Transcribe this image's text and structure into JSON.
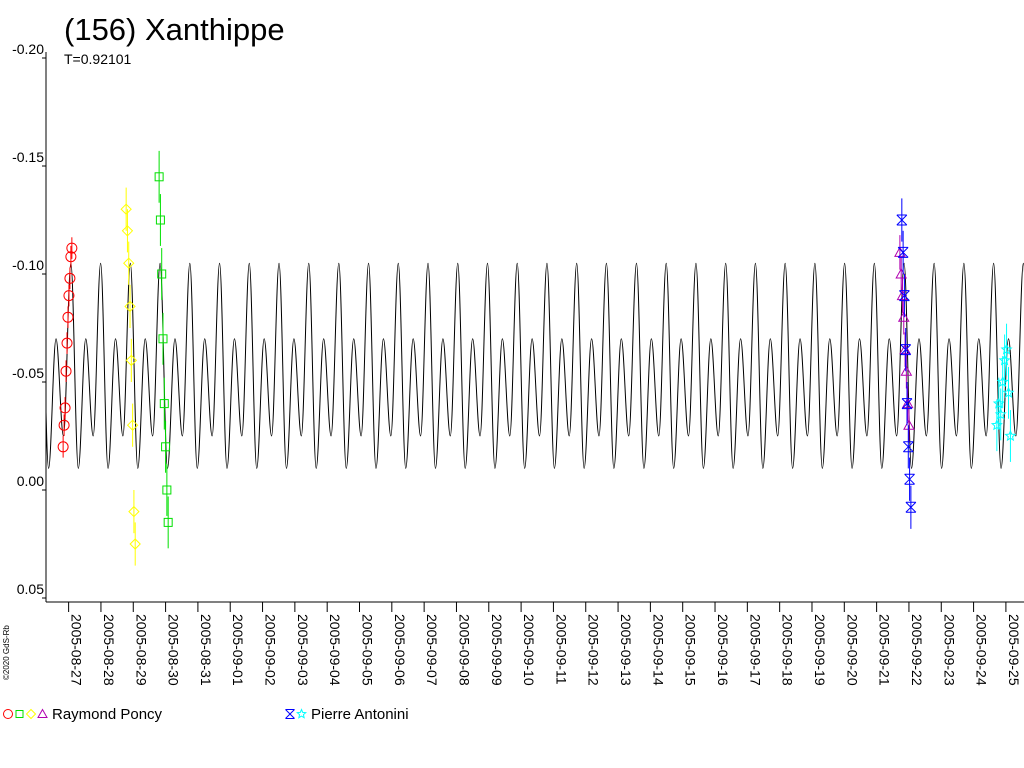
{
  "chart_data": {
    "type": "lightcurve",
    "title": "(156) Xanthippe",
    "subtitle": "T=0.92101",
    "credit": "©2020 GdS-Rb",
    "xlim": [
      238.3,
      268.56
    ],
    "ylim": [
      0.05,
      -0.2
    ],
    "yticks": [
      {
        "value": -0.2,
        "label": "-0.20"
      },
      -0.15,
      {
        "value": -0.1,
        "label": "-0.10"
      },
      -0.05,
      {
        "value": 0,
        "label": "0.00"
      },
      0.05
    ],
    "xticks": [
      {
        "value": 239,
        "label": "2005-08-27"
      },
      {
        "value": 240,
        "label": "2005-08-28"
      },
      {
        "value": 241,
        "label": "2005-08-29"
      },
      {
        "value": 242,
        "label": "2005-08-30"
      },
      {
        "value": 243,
        "label": "2005-08-31"
      },
      {
        "value": 244,
        "label": "2005-09-01"
      },
      {
        "value": 245,
        "label": "2005-09-02"
      },
      {
        "value": 246,
        "label": "2005-09-03"
      },
      {
        "value": 247,
        "label": "2005-09-04"
      },
      {
        "value": 248,
        "label": "2005-09-05"
      },
      {
        "value": 249,
        "label": "2005-09-06"
      },
      {
        "value": 250,
        "label": "2005-09-07"
      },
      {
        "value": 251,
        "label": "2005-09-08"
      },
      {
        "value": 252,
        "label": "2005-09-09"
      },
      {
        "value": 253,
        "label": "2005-09-10"
      },
      {
        "value": 254,
        "label": "2005-09-11"
      },
      {
        "value": 255,
        "label": "2005-09-12"
      },
      {
        "value": 256,
        "label": "2005-09-13"
      },
      {
        "value": 257,
        "label": "2005-09-14"
      },
      {
        "value": 258,
        "label": "2005-09-15"
      },
      {
        "value": 259,
        "label": "2005-09-16"
      },
      {
        "value": 260,
        "label": "2005-09-17"
      },
      {
        "value": 261,
        "label": "2005-09-18"
      },
      {
        "value": 262,
        "label": "2005-09-19"
      },
      {
        "value": 263,
        "label": "2005-09-20"
      },
      {
        "value": 264,
        "label": "2005-09-21"
      },
      {
        "value": 265,
        "label": "2005-09-22"
      },
      {
        "value": 266,
        "label": "2005-09-23"
      },
      {
        "value": 267,
        "label": "2005-09-24"
      },
      {
        "value": 268,
        "label": "2005-09-25"
      }
    ],
    "model": {
      "color": "#000000",
      "x": [
        238.15,
        238.38,
        238.61,
        238.84,
        239.07,
        239.3,
        239.53,
        239.76,
        239.99,
        240.22,
        240.45,
        240.68,
        240.91,
        241.14,
        241.37,
        241.6,
        241.83,
        242.06,
        242.29,
        242.52,
        242.75,
        242.98,
        243.21,
        243.44,
        243.67,
        243.9,
        244.13,
        244.36,
        244.59,
        244.82,
        245.05,
        245.28,
        245.51,
        245.74,
        245.97,
        246.2,
        246.43,
        246.66,
        246.89,
        247.12,
        247.36,
        247.59,
        247.82,
        248.05,
        248.28,
        248.51,
        248.74,
        248.97,
        249.2,
        249.43,
        249.66,
        249.89,
        250.12,
        250.35,
        250.58,
        250.81,
        251.04,
        251.27,
        251.5,
        251.73,
        251.96,
        252.19,
        252.42,
        252.65,
        252.88,
        253.11,
        253.34,
        253.57,
        253.8,
        254.03,
        254.26,
        254.49,
        254.72,
        254.95,
        255.18,
        255.41,
        255.64,
        255.87,
        256.1,
        256.33,
        256.57,
        256.8,
        257.03,
        257.26,
        257.49,
        257.72,
        257.95,
        258.18,
        258.41,
        258.64,
        258.87,
        259.1,
        259.33,
        259.56,
        259.79,
        260.02,
        260.25,
        260.48,
        260.71,
        260.94,
        261.17,
        261.4,
        261.63,
        261.86,
        262.09,
        262.32,
        262.55,
        262.78,
        263.01,
        263.24,
        263.47,
        263.7,
        263.93,
        264.16,
        264.39,
        264.62,
        264.85,
        265.08,
        265.31,
        265.54,
        265.78,
        266.01,
        266.24,
        266.47,
        266.7,
        266.93,
        267.16,
        267.39,
        267.62,
        267.85,
        268.08,
        268.31,
        268.54,
        268.77
      ],
      "values": [
        -0.105,
        -0.01,
        -0.07,
        -0.025,
        -0.105,
        -0.01,
        -0.07,
        -0.025,
        -0.105,
        -0.01,
        -0.07,
        -0.025,
        -0.105,
        -0.01,
        -0.07,
        -0.025,
        -0.105,
        -0.01,
        -0.07,
        -0.025,
        -0.105,
        -0.01,
        -0.07,
        -0.025,
        -0.105,
        -0.01,
        -0.07,
        -0.025,
        -0.105,
        -0.01,
        -0.07,
        -0.025,
        -0.105,
        -0.01,
        -0.07,
        -0.025,
        -0.105,
        -0.01,
        -0.07,
        -0.025,
        -0.105,
        -0.01,
        -0.07,
        -0.025,
        -0.105,
        -0.01,
        -0.07,
        -0.025,
        -0.105,
        -0.01,
        -0.07,
        -0.025,
        -0.105,
        -0.01,
        -0.07,
        -0.025,
        -0.105,
        -0.01,
        -0.07,
        -0.025,
        -0.105,
        -0.01,
        -0.07,
        -0.025,
        -0.105,
        -0.01,
        -0.07,
        -0.025,
        -0.105,
        -0.01,
        -0.07,
        -0.025,
        -0.105,
        -0.01,
        -0.07,
        -0.025,
        -0.105,
        -0.01,
        -0.07,
        -0.025,
        -0.105,
        -0.01,
        -0.07,
        -0.025,
        -0.105,
        -0.01,
        -0.07,
        -0.025,
        -0.105,
        -0.01,
        -0.07,
        -0.025,
        -0.105,
        -0.01,
        -0.07,
        -0.025,
        -0.105,
        -0.01,
        -0.07,
        -0.025,
        -0.105,
        -0.01,
        -0.07,
        -0.025,
        -0.105,
        -0.01,
        -0.07,
        -0.025,
        -0.105,
        -0.01,
        -0.07,
        -0.025,
        -0.105,
        -0.01,
        -0.07,
        -0.025,
        -0.105,
        -0.01,
        -0.07,
        -0.025,
        -0.105,
        -0.01,
        -0.07,
        -0.025,
        -0.105,
        -0.01,
        -0.07,
        -0.025,
        -0.105,
        -0.01,
        -0.07,
        -0.025,
        -0.105,
        -0.01
      ]
    },
    "observers": [
      {
        "name": "Raymond Poncy",
        "series": [
          {
            "color": "#ff0000",
            "marker": "circle",
            "x": [
              238.83,
              238.86,
              238.89,
              238.92,
              238.95,
              238.98,
              239.01,
              239.04,
              239.07,
              239.1
            ],
            "values": [
              -0.02,
              -0.03,
              -0.038,
              -0.055,
              -0.068,
              -0.08,
              -0.09,
              -0.098,
              -0.108,
              -0.112
            ],
            "errors": [
              0.005,
              0.005,
              0.005,
              0.005,
              0.005,
              0.005,
              0.005,
              0.005,
              0.005,
              0.005
            ]
          },
          {
            "color": "#00e000",
            "marker": "square",
            "x": [
              241.8,
              241.84,
              241.88,
              241.92,
              241.96,
              242.0,
              242.04,
              242.08
            ],
            "values": [
              -0.145,
              -0.125,
              -0.1,
              -0.07,
              -0.04,
              -0.02,
              0,
              0.015
            ],
            "errors": [
              0.012,
              0.012,
              0.012,
              0.012,
              0.012,
              0.012,
              0.012,
              0.012
            ]
          },
          {
            "color": "#ffff00",
            "marker": "diamond",
            "x": [
              240.78,
              240.82,
              240.86,
              240.9,
              240.94,
              240.98,
              241.02,
              241.06
            ],
            "values": [
              -0.13,
              -0.12,
              -0.105,
              -0.085,
              -0.06,
              -0.03,
              0.01,
              0.025
            ],
            "errors": [
              0.01,
              0.01,
              0.01,
              0.01,
              0.01,
              0.01,
              0.01,
              0.01
            ]
          },
          {
            "color": "#b000b0",
            "marker": "triangle",
            "x": [
              264.72,
              264.76,
              264.8,
              264.84,
              264.88,
              264.92,
              264.96,
              265.0
            ],
            "values": [
              -0.11,
              -0.1,
              -0.09,
              -0.08,
              -0.065,
              -0.055,
              -0.04,
              -0.03
            ],
            "errors": [
              0.008,
              0.008,
              0.008,
              0.008,
              0.008,
              0.008,
              0.008,
              0.008
            ]
          }
        ]
      },
      {
        "name": "Pierre Antonini",
        "series": [
          {
            "color": "#0000ff",
            "marker": "xstar",
            "x": [
              264.78,
              264.82,
              264.86,
              264.9,
              264.94,
              264.98,
              265.02,
              265.06
            ],
            "values": [
              -0.125,
              -0.11,
              -0.09,
              -0.065,
              -0.04,
              -0.02,
              -0.005,
              0.008
            ],
            "errors": [
              0.01,
              0.01,
              0.01,
              0.01,
              0.01,
              0.01,
              0.01,
              0.01
            ]
          },
          {
            "color": "#00ffff",
            "marker": "star",
            "x": [
              267.72,
              267.78,
              267.84,
              267.9,
              267.96,
              268.02,
              268.08,
              268.14
            ],
            "values": [
              -0.03,
              -0.04,
              -0.035,
              -0.05,
              -0.06,
              -0.065,
              -0.045,
              -0.025
            ],
            "errors": [
              0.012,
              0.012,
              0.012,
              0.012,
              0.012,
              0.012,
              0.012,
              0.012
            ]
          }
        ]
      }
    ]
  }
}
